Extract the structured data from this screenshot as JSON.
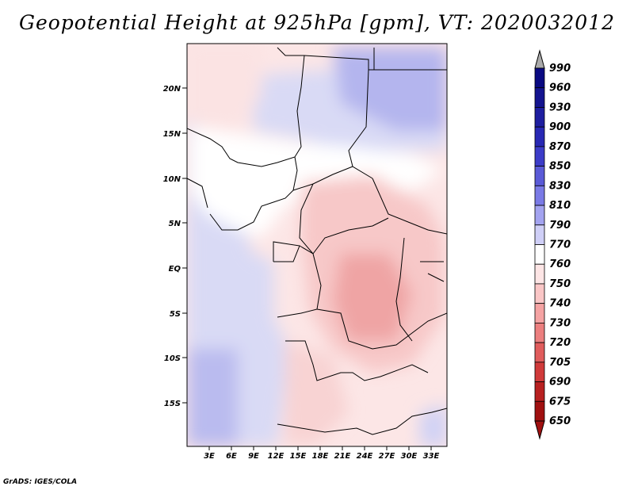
{
  "title": "Geopotential Height at 925hPa [gpm], VT: 2020032012",
  "credit": "GrADS: IGES/COLA",
  "map": {
    "lat_ticks": [
      "20N",
      "15N",
      "10N",
      "5N",
      "EQ",
      "5S",
      "10S",
      "15S"
    ],
    "lon_ticks": [
      "3E",
      "6E",
      "9E",
      "12E",
      "15E",
      "18E",
      "21E",
      "24E",
      "27E",
      "30E",
      "33E"
    ]
  },
  "colorbar": {
    "levels": [
      "990",
      "960",
      "930",
      "900",
      "870",
      "850",
      "830",
      "810",
      "790",
      "770",
      "760",
      "750",
      "740",
      "730",
      "720",
      "705",
      "690",
      "675",
      "650"
    ],
    "colors": [
      "#aaaaaa",
      "#0a0a82",
      "#14148f",
      "#1e1ea0",
      "#2828b4",
      "#3c3cc8",
      "#5a5ad7",
      "#7a7ae6",
      "#a3a3f0",
      "#cfcff7",
      "#ffffff",
      "#fde5e5",
      "#fac6c6",
      "#f5a3a3",
      "#ec7f7f",
      "#e05c5c",
      "#d03a3a",
      "#b82020",
      "#a01010",
      "#a01010"
    ]
  }
}
